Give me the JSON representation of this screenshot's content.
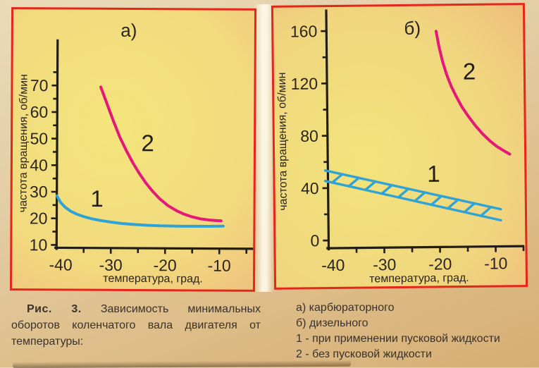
{
  "figure": {
    "caption_label": "Рис. 3.",
    "caption_text": "Зависимость минимальных оборотов коленчатого вала двигателя от температуры:",
    "legend_lines": [
      "а) карбюраторного",
      "б) дизельного",
      "1 - при применении пусковой жидкости",
      "2 - без пусковой жидкости"
    ]
  },
  "colors": {
    "panel_border": "#e62619",
    "curve_1": "#2fa3d6",
    "curve_2": "#e5177b",
    "axis": "#221c16",
    "caption_text": "#3a322a"
  },
  "chart_data": [
    {
      "type": "line",
      "title": "а)",
      "xlabel": "температура, град.",
      "ylabel": "частота вращения, об/мин",
      "xlim": [
        -40,
        -4
      ],
      "ylim": [
        5,
        87
      ],
      "xticks": [
        -40,
        -30,
        -20,
        -10
      ],
      "xminors": [
        -35,
        -25,
        -15,
        -5
      ],
      "yticks": [
        10,
        20,
        30,
        40,
        50,
        60,
        70
      ],
      "yminors": [
        15,
        25,
        35,
        45,
        55,
        65,
        75
      ],
      "grid": false,
      "legend_position": "none",
      "series": [
        {
          "name": "1",
          "kind": "line",
          "color": "#2fa3d6",
          "label": "при применении пусковой жидкости",
          "label_pos": [
            -32.6,
            24.5
          ],
          "points": [
            [
              -40,
              28.5
            ],
            [
              -39.3,
              26
            ],
            [
              -38.5,
              24.3
            ],
            [
              -37.5,
              22.8
            ],
            [
              -36.3,
              21.6
            ],
            [
              -35,
              20.7
            ],
            [
              -33.5,
              19.9
            ],
            [
              -32,
              19.3
            ],
            [
              -30,
              18.7
            ],
            [
              -28,
              18.2
            ],
            [
              -26,
              17.9
            ],
            [
              -23.5,
              17.6
            ],
            [
              -21,
              17.4
            ],
            [
              -18,
              17.3
            ],
            [
              -15,
              17.3
            ],
            [
              -12,
              17.3
            ],
            [
              -9.3,
              17.4
            ]
          ]
        },
        {
          "name": "2",
          "kind": "line",
          "color": "#e5177b",
          "label": "без пусковой жидкости",
          "label_pos": [
            -23.3,
            45.5
          ],
          "points": [
            [
              -32,
              69.5
            ],
            [
              -30.8,
              63
            ],
            [
              -29.6,
              56.5
            ],
            [
              -28.4,
              50.5
            ],
            [
              -27.2,
              45.5
            ],
            [
              -26,
              41
            ],
            [
              -24.8,
              37
            ],
            [
              -23.6,
              33.5
            ],
            [
              -22.4,
              30.5
            ],
            [
              -21,
              27.5
            ],
            [
              -19.5,
              25
            ],
            [
              -18,
              23.2
            ],
            [
              -16.5,
              21.8
            ],
            [
              -15,
              20.8
            ],
            [
              -13.5,
              20.1
            ],
            [
              -12,
              19.7
            ],
            [
              -10.8,
              19.5
            ],
            [
              -9.7,
              19.4
            ]
          ]
        }
      ]
    },
    {
      "type": "line",
      "title": "б)",
      "xlabel": "температура, град.",
      "ylabel": "частота вращения, об/мин",
      "xlim": [
        -40,
        -5
      ],
      "ylim": [
        0,
        176
      ],
      "xticks": [
        -40,
        -30,
        -20,
        -10
      ],
      "xminors": [
        -35,
        -25,
        -15,
        -5
      ],
      "yticks": [
        0,
        40,
        80,
        120,
        160
      ],
      "yminors": [
        20,
        60,
        100,
        140
      ],
      "grid": false,
      "legend_position": "none",
      "series": [
        {
          "name": "1",
          "kind": "band",
          "color": "#2fa3d6",
          "label": "при применении пусковой жидкости",
          "label_pos": [
            -21,
            44
          ],
          "hatch_count": 10,
          "upper": [
            [
              -40.5,
              53.5
            ],
            [
              -9,
              22.5
            ]
          ],
          "lower": [
            [
              -40.5,
              45.5
            ],
            [
              -9,
              14
            ]
          ]
        },
        {
          "name": "2",
          "kind": "line",
          "color": "#e5177b",
          "label": "без пусковой жидкости",
          "label_pos": [
            -14.4,
            122
          ],
          "points": [
            [
              -20.3,
              159
            ],
            [
              -19.8,
              147
            ],
            [
              -19.2,
              136
            ],
            [
              -18.5,
              126
            ],
            [
              -17.7,
              117
            ],
            [
              -16.8,
              109
            ],
            [
              -15.8,
              101
            ],
            [
              -14.7,
              94
            ],
            [
              -13.5,
              87
            ],
            [
              -12.2,
              80.5
            ],
            [
              -10.9,
              75
            ],
            [
              -9.6,
              70.5
            ],
            [
              -8.3,
              67
            ],
            [
              -7.3,
              64.5
            ]
          ]
        }
      ]
    }
  ]
}
